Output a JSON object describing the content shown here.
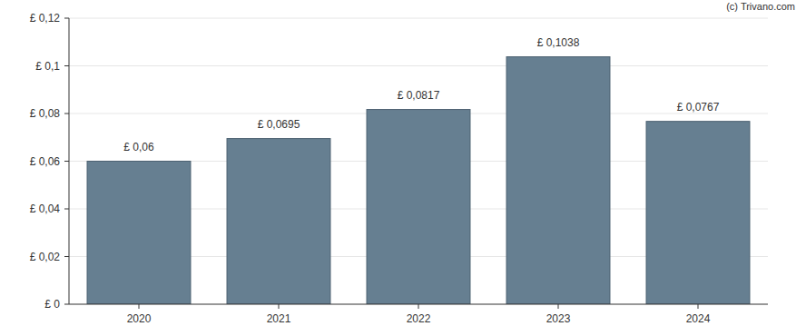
{
  "chart_data": {
    "type": "bar",
    "categories": [
      "2020",
      "2021",
      "2022",
      "2023",
      "2024"
    ],
    "values": [
      0.06,
      0.0695,
      0.0817,
      0.1038,
      0.0767
    ],
    "value_labels": [
      "£ 0,06",
      "£ 0,0695",
      "£ 0,0817",
      "£ 0,1038",
      "£ 0,0767"
    ],
    "data_labels": true,
    "color": "#667f91",
    "ylim": [
      0,
      0.12
    ],
    "yticks": [
      {
        "value": 0,
        "label": "£ 0"
      },
      {
        "value": 0.02,
        "label": "£ 0,02"
      },
      {
        "value": 0.04,
        "label": "£ 0,04"
      },
      {
        "value": 0.06,
        "label": "£ 0,06"
      },
      {
        "value": 0.08,
        "label": "£ 0,08"
      },
      {
        "value": 0.1,
        "label": "£ 0,1"
      },
      {
        "value": 0.12,
        "label": "£ 0,12"
      }
    ],
    "grid": true,
    "annotations": [
      "(c) Trivano.com"
    ]
  }
}
